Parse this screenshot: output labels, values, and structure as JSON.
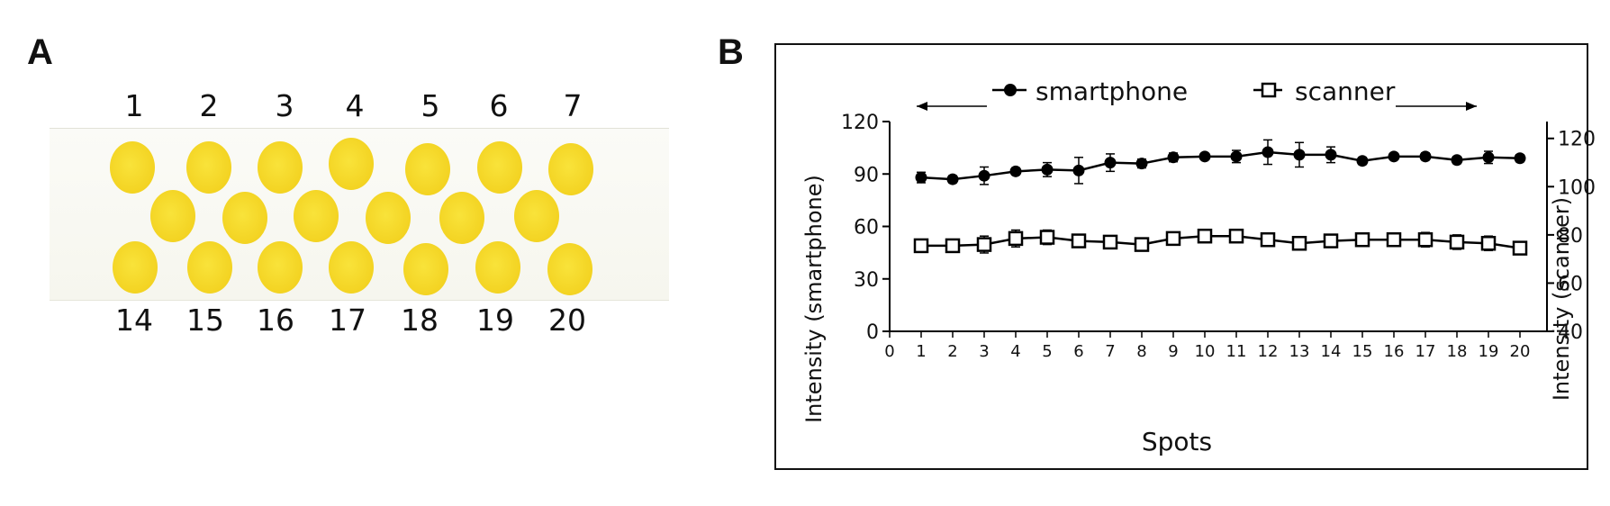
{
  "panel_a": {
    "letter": "A",
    "top_labels": [
      "1",
      "2",
      "3",
      "4",
      "5",
      "6",
      "7"
    ],
    "bottom_labels": [
      "14",
      "15",
      "16",
      "17",
      "18",
      "19",
      "20"
    ],
    "spot_color": "#f5d62a"
  },
  "panel_b": {
    "letter": "B"
  },
  "chart_data": {
    "type": "line",
    "xlabel": "Spots",
    "ylabel_left": "Intensity (smartphone)",
    "ylabel_right": "Intensity (scanner)",
    "x": [
      1,
      2,
      3,
      4,
      5,
      6,
      7,
      8,
      9,
      10,
      11,
      12,
      13,
      14,
      15,
      16,
      17,
      18,
      19,
      20
    ],
    "x_ticks": [
      0,
      1,
      2,
      3,
      4,
      5,
      6,
      7,
      8,
      9,
      10,
      11,
      12,
      13,
      14,
      15,
      16,
      17,
      18,
      19,
      20
    ],
    "xlim": [
      0,
      20
    ],
    "ylim_left": [
      0,
      120
    ],
    "yticks_left": [
      0,
      30,
      60,
      90,
      120
    ],
    "ylim_right": [
      40,
      127
    ],
    "yticks_right": [
      40,
      60,
      80,
      100,
      120
    ],
    "legend_arrows": [
      "left",
      "right"
    ],
    "series": [
      {
        "name": "smartphone",
        "axis": "left",
        "marker": "filled-circle",
        "values": [
          88,
          87,
          89,
          91.5,
          92.5,
          92,
          96.5,
          96,
          99.5,
          100,
          100,
          102.5,
          101,
          101,
          97.5,
          100,
          100,
          98,
          99.5,
          99
        ],
        "error": [
          3,
          2,
          5,
          2,
          4,
          7.5,
          5,
          2.5,
          2.5,
          1.5,
          3.5,
          7,
          7,
          4.5,
          2,
          1.5,
          2,
          2,
          3.5,
          2
        ]
      },
      {
        "name": "scanner",
        "axis": "right",
        "marker": "open-square",
        "values": [
          75.5,
          75.5,
          76,
          78.5,
          79,
          77.5,
          77,
          76,
          78.5,
          79.5,
          79.5,
          78,
          76.5,
          77.5,
          78,
          78,
          78,
          77,
          76.5,
          74.5
        ],
        "error": [
          1,
          2,
          3.5,
          3.5,
          3,
          2,
          2,
          2,
          1.5,
          1,
          1.5,
          1.5,
          2.5,
          1.5,
          2.5,
          2,
          3,
          3,
          3,
          2.5
        ]
      }
    ],
    "colors": {
      "line": "#000000",
      "marker_fill_open": "#ffffff"
    }
  }
}
